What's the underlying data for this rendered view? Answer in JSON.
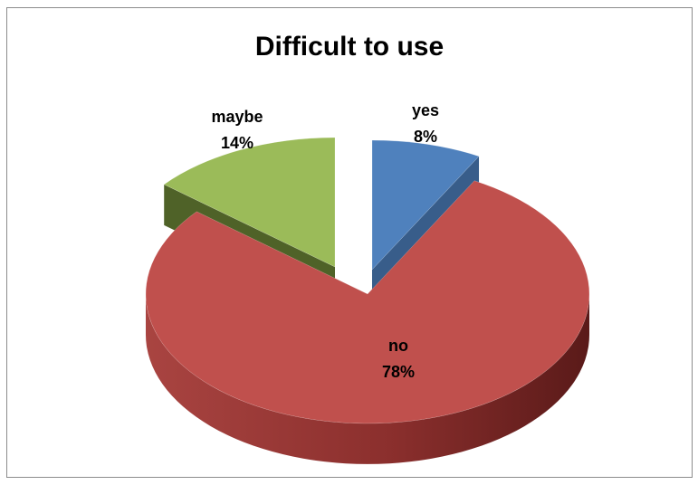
{
  "chart_data": {
    "type": "pie",
    "title": "Difficult to use",
    "slices": [
      {
        "label": "yes",
        "value": 8,
        "value_label": "8%",
        "color": "#4f81bd",
        "side_color": "#385d8a"
      },
      {
        "label": "no",
        "value": 78,
        "value_label": "78%",
        "color": "#c0504d",
        "side_color": "#8b2f2d"
      },
      {
        "label": "maybe",
        "value": 14,
        "value_label": "14%",
        "color": "#9bbb59",
        "side_color": "#4f6228"
      }
    ],
    "style": "3d-exploded",
    "legend": "none"
  }
}
